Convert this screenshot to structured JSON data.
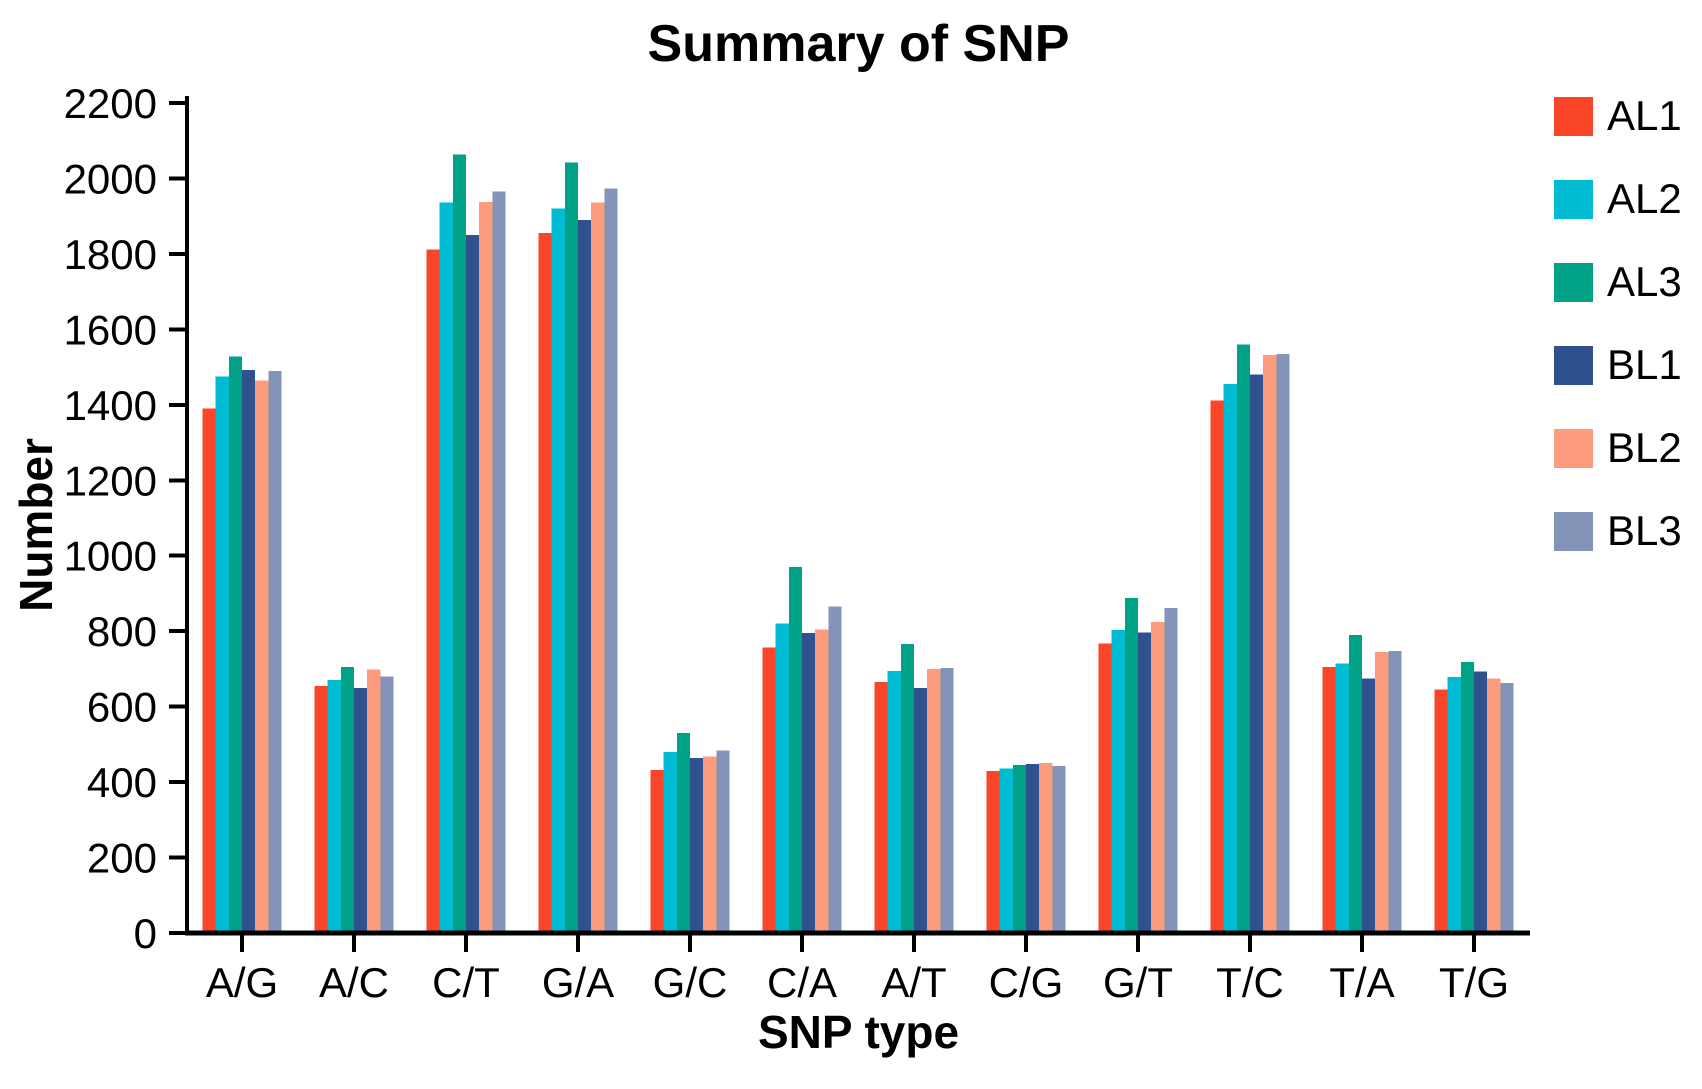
{
  "chart_data": {
    "type": "bar",
    "title": "Summary of SNP",
    "xlabel": "SNP type",
    "ylabel": "Number",
    "categories": [
      "A/G",
      "A/C",
      "C/T",
      "G/A",
      "G/C",
      "C/A",
      "A/T",
      "C/G",
      "G/T",
      "T/C",
      "T/A",
      "T/G"
    ],
    "series": [
      {
        "name": "AL1",
        "color": "#fa4529",
        "values": [
          1390,
          655,
          1812,
          1855,
          432,
          757,
          665,
          430,
          768,
          1412,
          705,
          645
        ]
      },
      {
        "name": "AL2",
        "color": "#00bcd2",
        "values": [
          1475,
          670,
          1936,
          1920,
          480,
          820,
          695,
          436,
          803,
          1455,
          715,
          678
        ]
      },
      {
        "name": "AL3",
        "color": "#00a187",
        "values": [
          1528,
          705,
          2063,
          2042,
          530,
          970,
          766,
          445,
          888,
          1560,
          790,
          718
        ]
      },
      {
        "name": "BL1",
        "color": "#2f5190",
        "values": [
          1492,
          650,
          1850,
          1890,
          464,
          795,
          650,
          448,
          796,
          1480,
          675,
          693
        ]
      },
      {
        "name": "BL2",
        "color": "#fc9c7c",
        "values": [
          1465,
          698,
          1937,
          1936,
          468,
          805,
          700,
          450,
          825,
          1532,
          745,
          675
        ]
      },
      {
        "name": "BL3",
        "color": "#8294b8",
        "values": [
          1490,
          680,
          1966,
          1974,
          484,
          865,
          702,
          443,
          862,
          1535,
          748,
          662
        ]
      }
    ],
    "ylim": [
      0,
      2200
    ],
    "ytick_step": 200,
    "grid": false,
    "legend_position": "right",
    "axis_color": "#000000"
  }
}
